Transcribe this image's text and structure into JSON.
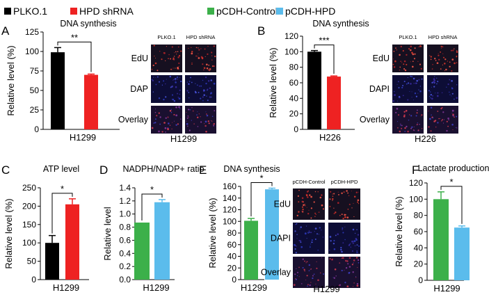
{
  "legends": [
    {
      "label": "PLKO.1",
      "color": "#000000"
    },
    {
      "label": "HPD shRNA",
      "color": "#ee2222"
    },
    {
      "label": "pCDH-Control",
      "color": "#3cb04a"
    },
    {
      "label": "pCDH-HPD",
      "color": "#5bbcec"
    }
  ],
  "chart_data": [
    {
      "panel": "A",
      "type": "bar",
      "title": "DNA synthesis",
      "ylabel": "Relative level (%)",
      "ylim": [
        0,
        125
      ],
      "yticks": [
        0,
        25,
        50,
        75,
        100,
        125
      ],
      "xlabel": "H1299",
      "categories": [
        "PLKO.1",
        "HPD shRNA"
      ],
      "values": [
        99,
        70
      ],
      "errors": [
        6,
        1
      ],
      "colors": [
        "#000000",
        "#ee2222"
      ],
      "significance": "**",
      "grid": false
    },
    {
      "panel": "B",
      "type": "bar",
      "title": "DNA synthesis",
      "ylabel": "Relative level (%)",
      "ylim": [
        0,
        120
      ],
      "yticks": [
        0,
        20,
        40,
        60,
        80,
        100,
        120
      ],
      "xlabel": "H226",
      "categories": [
        "PLKO.1",
        "HPD shRNA"
      ],
      "values": [
        100,
        68
      ],
      "errors": [
        1.5,
        0.8
      ],
      "colors": [
        "#000000",
        "#ee2222"
      ],
      "significance": "***",
      "grid": false
    },
    {
      "panel": "C",
      "type": "bar",
      "title": "ATP level",
      "ylabel": "Relative level (%)",
      "ylim": [
        0,
        250
      ],
      "yticks": [
        0,
        50,
        100,
        150,
        200,
        250
      ],
      "xlabel": "H1299",
      "categories": [
        "PLKO.1",
        "HPD shRNA"
      ],
      "values": [
        100,
        205
      ],
      "errors": [
        20,
        15
      ],
      "colors": [
        "#000000",
        "#ee2222"
      ],
      "significance": "*",
      "grid": false
    },
    {
      "panel": "D",
      "type": "bar",
      "title": "NADPH/NADP+ ratio",
      "ylabel": "Relative level",
      "ylim": [
        0,
        1.4
      ],
      "yticks": [
        0,
        0.2,
        0.4,
        0.6,
        0.8,
        1.0,
        1.2,
        1.4
      ],
      "xlabel": "H1299",
      "categories": [
        "pCDH-Control",
        "pCDH-HPD"
      ],
      "values": [
        0.87,
        1.18
      ],
      "errors": [
        0,
        0.04
      ],
      "colors": [
        "#3cb04a",
        "#5bbcec"
      ],
      "significance": "*",
      "grid": false
    },
    {
      "panel": "E",
      "type": "bar",
      "title": "DNA synthesis",
      "ylabel": "Relative level (%)",
      "ylim": [
        0,
        160
      ],
      "yticks": [
        0,
        20,
        40,
        60,
        80,
        100,
        120,
        140,
        160
      ],
      "xlabel": "H1299",
      "categories": [
        "pCDH-Control",
        "pCDH-HPD"
      ],
      "values": [
        101,
        155
      ],
      "errors": [
        4,
        2
      ],
      "colors": [
        "#3cb04a",
        "#5bbcec"
      ],
      "significance": "*",
      "grid": false
    },
    {
      "panel": "F",
      "type": "bar",
      "title": "Lactate production",
      "ylabel": "Relative level (%)",
      "ylim": [
        0,
        120
      ],
      "yticks": [
        0,
        20,
        40,
        60,
        80,
        100,
        120
      ],
      "xlabel": "H1299",
      "categories": [
        "pCDH-Control",
        "pCDH-HPD"
      ],
      "values": [
        100,
        65
      ],
      "errors": [
        9,
        2
      ],
      "colors": [
        "#3cb04a",
        "#5bbcec"
      ],
      "significance": "*",
      "grid": false
    }
  ],
  "micrographs": [
    {
      "panel": "A",
      "columns": [
        "PLKO.1",
        "HPD shRNA"
      ],
      "rows": [
        "EdU",
        "DAP",
        "Overlay"
      ],
      "caption": "H1299"
    },
    {
      "panel": "B",
      "columns": [
        "PLKO.1",
        "HPD shRNA"
      ],
      "rows": [
        "EdU",
        "DAPI",
        "Overlay"
      ],
      "caption": "H226"
    },
    {
      "panel": "E",
      "columns": [
        "pCDH-Control",
        "pCDH-HPD"
      ],
      "rows": [
        "EdU",
        "DAPI",
        "Overlay"
      ],
      "caption": "H1299"
    }
  ]
}
